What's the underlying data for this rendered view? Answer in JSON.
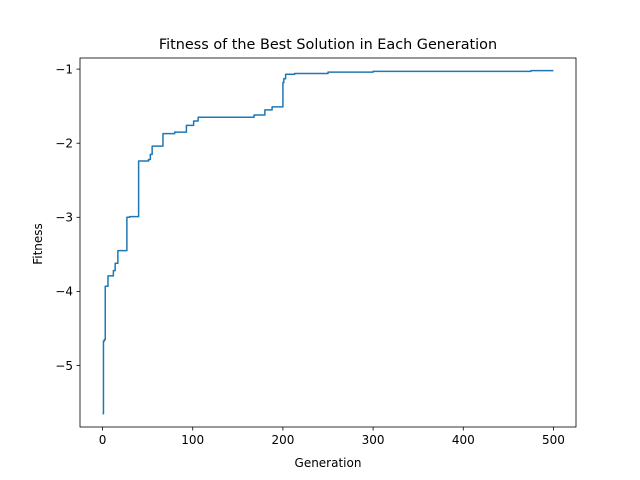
{
  "chart_data": {
    "type": "line",
    "title": "Fitness of the Best Solution in Each Generation",
    "xlabel": "Generation",
    "ylabel": "Fitness",
    "xlim": [
      -25,
      525
    ],
    "ylim": [
      -5.83,
      -0.85
    ],
    "xticks": [
      0,
      100,
      200,
      300,
      400,
      500
    ],
    "yticks": [
      -5,
      -4,
      -3,
      -2,
      -1
    ],
    "xtick_labels": [
      "0",
      "100",
      "200",
      "300",
      "400",
      "500"
    ],
    "ytick_labels": [
      "−5",
      "−4",
      "−3",
      "−2",
      "−1"
    ],
    "grid": false,
    "color": "#1f77b4",
    "series": [
      {
        "x": [
          0,
          1,
          1,
          2,
          2,
          3,
          3,
          6,
          6,
          9,
          9,
          12,
          12,
          14,
          14,
          17,
          17,
          21,
          21,
          27,
          27,
          30,
          30,
          34,
          34,
          40,
          40,
          51,
          51,
          53,
          53,
          55,
          55,
          67,
          67,
          80,
          80,
          93,
          93,
          101,
          101,
          106,
          106,
          168,
          168,
          180,
          180,
          188,
          188,
          200,
          200,
          201,
          201,
          203,
          203,
          213,
          213,
          250,
          250,
          300,
          300,
          325,
          325,
          475,
          475,
          500
        ],
        "y": [
          -5.65,
          -5.65,
          -4.67,
          -4.67,
          -4.65,
          -4.65,
          -3.93,
          -3.93,
          -3.79,
          -3.79,
          -3.79,
          -3.79,
          -3.72,
          -3.72,
          -3.62,
          -3.62,
          -3.45,
          -3.45,
          -3.45,
          -3.45,
          -3.0,
          -3.0,
          -2.99,
          -2.99,
          -2.99,
          -2.99,
          -2.24,
          -2.24,
          -2.22,
          -2.22,
          -2.15,
          -2.15,
          -2.04,
          -2.04,
          -1.87,
          -1.87,
          -1.85,
          -1.85,
          -1.76,
          -1.76,
          -1.7,
          -1.7,
          -1.65,
          -1.65,
          -1.62,
          -1.62,
          -1.55,
          -1.55,
          -1.51,
          -1.51,
          -1.18,
          -1.18,
          -1.13,
          -1.13,
          -1.07,
          -1.07,
          -1.06,
          -1.06,
          -1.04,
          -1.04,
          -1.03,
          -1.03,
          -1.03,
          -1.03,
          -1.02,
          -1.02
        ]
      }
    ]
  }
}
